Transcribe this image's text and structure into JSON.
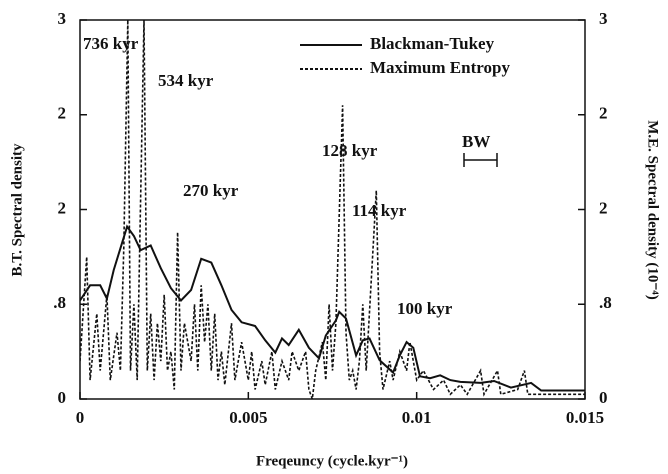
{
  "chart_data": {
    "type": "line",
    "xlabel": "Freqeuncy (cycle.kyr⁻¹)",
    "ylabel": "B.T. Spectral density",
    "y2label": "M.E. Spectral density (10⁻⁴)",
    "annotations": [
      "736 kyr",
      "534 kyr",
      "270 kyr",
      "128 kyr",
      "114 kyr",
      "100 kyr",
      "BW"
    ],
    "xlim": [
      0,
      0.015
    ],
    "xticks": [
      0,
      0.005,
      0.01,
      0.015
    ],
    "ylim": [
      0,
      4
    ],
    "yticks": [
      0,
      {
        "value": 1,
        "label": ".8"
      },
      {
        "value": 2,
        "label": "2"
      },
      {
        "value": 3,
        "label": "2"
      },
      {
        "value": 4,
        "label": "3"
      }
    ],
    "y2lim": [
      0,
      4
    ],
    "y2ticks": [
      0,
      {
        "value": 1,
        "label": ".8"
      },
      {
        "value": 2,
        "label": "2"
      },
      {
        "value": 3,
        "label": "2"
      },
      {
        "value": 4,
        "label": "3"
      }
    ],
    "legend": "upper right",
    "series": [
      {
        "name": "Blackman-Tukey",
        "color": "#111111",
        "dash": "solid",
        "x": [
          0,
          0.0003,
          0.0006,
          0.0008,
          0.001,
          0.0014,
          0.0016,
          0.0018,
          0.0021,
          0.0024,
          0.0027,
          0.003,
          0.0033,
          0.0036,
          0.0039,
          0.0042,
          0.0045,
          0.0048,
          0.0052,
          0.0055,
          0.0058,
          0.006,
          0.0062,
          0.0065,
          0.0068,
          0.0071,
          0.0073,
          0.0076,
          0.0077,
          0.0079,
          0.0082,
          0.0084,
          0.0086,
          0.0089,
          0.0093,
          0.0095,
          0.0097,
          0.0099,
          0.0101,
          0.0104,
          0.0107,
          0.011,
          0.0113,
          0.0119,
          0.0123,
          0.0128,
          0.0134,
          0.0137,
          0.015
        ],
        "values": [
          1.04,
          1.2,
          1.2,
          1.06,
          1.36,
          1.82,
          1.72,
          1.57,
          1.62,
          1.38,
          1.17,
          1.04,
          1.15,
          1.48,
          1.44,
          1.2,
          0.94,
          0.81,
          0.77,
          0.62,
          0.49,
          0.64,
          0.57,
          0.73,
          0.54,
          0.43,
          0.67,
          0.83,
          0.92,
          0.85,
          0.46,
          0.62,
          0.64,
          0.41,
          0.28,
          0.46,
          0.6,
          0.54,
          0.24,
          0.22,
          0.25,
          0.2,
          0.18,
          0.17,
          0.19,
          0.12,
          0.17,
          0.09,
          0.09
        ]
      },
      {
        "name": "Maximum Entropy",
        "color": "#111111",
        "dash": "dotted",
        "axis": "y2",
        "x": [
          0,
          0.0002,
          0.0003,
          0.0005,
          0.0006,
          0.0008,
          0.0009,
          0.0011,
          0.0012,
          0.0013,
          0.00142,
          0.0015,
          0.0016,
          0.0017,
          0.0019,
          0.002,
          0.0021,
          0.0022,
          0.0023,
          0.0024,
          0.0025,
          0.0026,
          0.0027,
          0.0028,
          0.0029,
          0.003,
          0.0031,
          0.0033,
          0.0034,
          0.0035,
          0.0036,
          0.0037,
          0.0038,
          0.0039,
          0.004,
          0.0041,
          0.0042,
          0.0043,
          0.0045,
          0.0046,
          0.0048,
          0.005,
          0.0051,
          0.0052,
          0.0054,
          0.0055,
          0.0057,
          0.0058,
          0.006,
          0.0062,
          0.0063,
          0.0065,
          0.0067,
          0.0068,
          0.0069,
          0.007,
          0.0072,
          0.0073,
          0.0074,
          0.0075,
          0.0076,
          0.0078,
          0.0079,
          0.008,
          0.0081,
          0.0082,
          0.0083,
          0.0084,
          0.0085,
          0.0088,
          0.0089,
          0.009,
          0.0092,
          0.0093,
          0.0095,
          0.0097,
          0.0098,
          0.01,
          0.0102,
          0.0105,
          0.0108,
          0.011,
          0.0113,
          0.0115,
          0.0119,
          0.012,
          0.0124,
          0.0125,
          0.013,
          0.0132,
          0.0133,
          0.014,
          0.015
        ],
        "values": [
          0.4,
          1.5,
          0.2,
          0.9,
          0.3,
          1.1,
          0.2,
          0.7,
          0.3,
          1.6,
          4,
          0.3,
          1,
          0.2,
          4,
          0.3,
          0.9,
          0.2,
          0.8,
          0.4,
          1.1,
          0.3,
          0.5,
          0.1,
          1.76,
          0.3,
          0.8,
          0.4,
          1,
          0.3,
          1.2,
          0.6,
          1,
          0.3,
          0.9,
          0.2,
          0.5,
          0.15,
          0.8,
          0.2,
          0.6,
          0.2,
          0.5,
          0.1,
          0.4,
          0.15,
          0.5,
          0.1,
          0.4,
          0.2,
          0.5,
          0.3,
          0.5,
          0.1,
          0,
          0.3,
          0.6,
          0.2,
          1,
          0.3,
          0.8,
          3.1,
          0.7,
          0.2,
          0.3,
          0.1,
          0.4,
          1,
          0.3,
          2.2,
          0.5,
          0.1,
          0.4,
          0.2,
          0.5,
          0.3,
          0.6,
          0.2,
          0.3,
          0.1,
          0.2,
          0.05,
          0.15,
          0.05,
          0.3,
          0.05,
          0.3,
          0.05,
          0.1,
          0.3,
          0.05,
          0.05,
          0.05
        ]
      }
    ]
  }
}
